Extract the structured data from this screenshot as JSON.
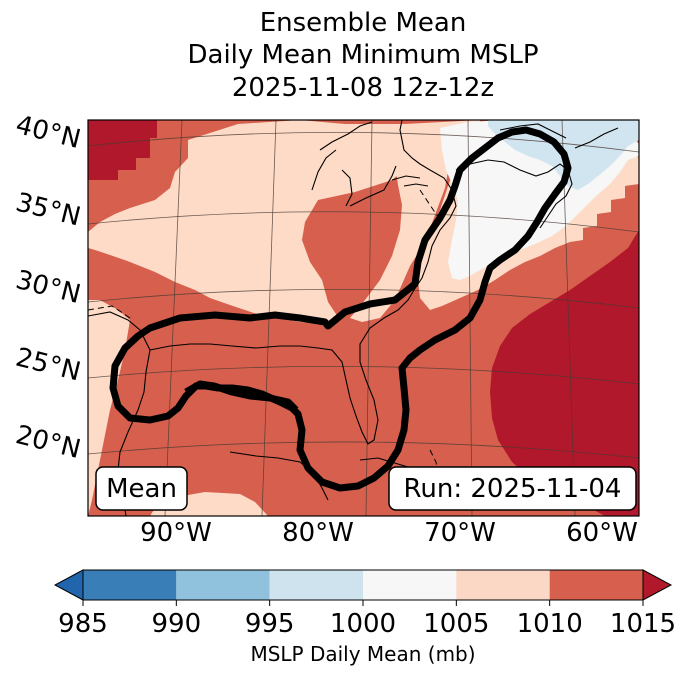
{
  "chart_data": {
    "type": "heatmap",
    "title_lines": [
      "Ensemble Mean",
      "Daily Mean Minimum MSLP",
      "2025-11-08 12z-12z"
    ],
    "map_extent": {
      "lon": [
        -97,
        -59
      ],
      "lat": [
        15,
        42
      ]
    },
    "lat_ticks": [
      {
        "value": 40,
        "label": "40°N"
      },
      {
        "value": 35,
        "label": "35°N"
      },
      {
        "value": 30,
        "label": "30°N"
      },
      {
        "value": 25,
        "label": "25°N"
      },
      {
        "value": 20,
        "label": "20°N"
      }
    ],
    "lon_ticks": [
      {
        "value": -90,
        "label": "90°W"
      },
      {
        "value": -80,
        "label": "80°W"
      },
      {
        "value": -70,
        "label": "70°W"
      },
      {
        "value": -60,
        "label": "60°W"
      }
    ],
    "mean_box_label": "Mean",
    "run_box_label": "Run: 2025-11-04",
    "contour_description": "Thick black outline enclosing Gulf of Mexico, Florida and US East Coast region",
    "colorbar": {
      "label": "MSLP Daily Mean (mb)",
      "bounds": [
        985,
        990,
        995,
        1000,
        1005,
        1010,
        1015
      ],
      "tick_labels": [
        "985",
        "990",
        "995",
        "1000",
        "1005",
        "1010",
        "1015"
      ],
      "colors": [
        "#3a7eb8",
        "#90c2de",
        "#cfe3ef",
        "#f7f7f7",
        "#fbd8c5",
        "#d6604d",
        "#b2182b"
      ],
      "extend": "both",
      "under_color": "#2166ac",
      "over_color": "#b2182b"
    },
    "field_colors": {
      "c995": "#d1e5f0",
      "c1000": "#f7f7f7",
      "c1005": "#fddbc7",
      "c1010": "#d6604d",
      "c1015": "#b2182b"
    }
  }
}
